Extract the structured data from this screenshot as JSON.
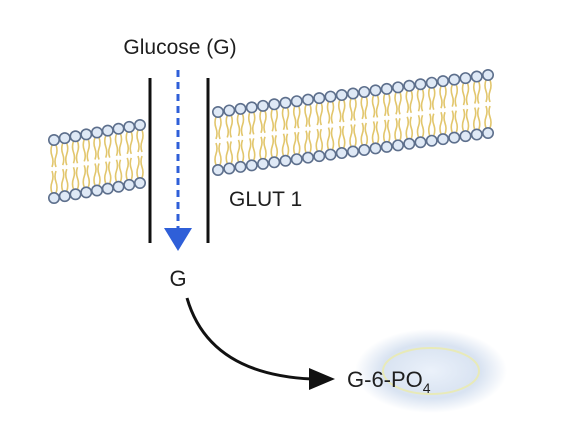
{
  "diagram": {
    "labels": {
      "top": "Glucose (G)",
      "transporter": "GLUT 1",
      "inside": "G",
      "product_main": "G-6-PO",
      "product_sub": "4"
    },
    "colors": {
      "background": "#ffffff",
      "membrane_tails": "#e2c66c",
      "membrane_heads_fill": "#dfe9f6",
      "membrane_heads_stroke": "#5d6f8c",
      "transport_arrow": "#2f5fd8",
      "reaction_arrow": "#111111",
      "channel_walls": "#111111",
      "product_glow": "#cfdcee"
    }
  }
}
